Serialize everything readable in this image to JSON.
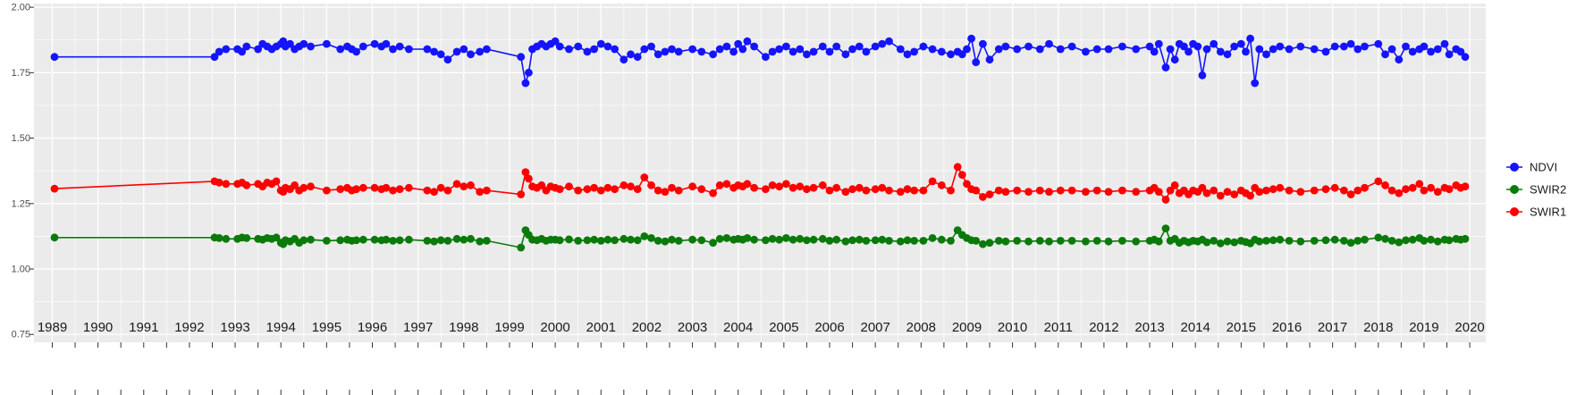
{
  "figure": {
    "background": "#FFFFFF",
    "panel_background": "#EBEBEB",
    "grid_color": "#FFFFFF",
    "axis_text_color": "#1a1a1a",
    "y_axis_text_color": "#4d4d4d",
    "tick_color": "#333333"
  },
  "axes": {
    "y_tick_labels": [
      "2.00",
      "1.75",
      "1.50",
      "1.25",
      "1.00",
      "0.75"
    ],
    "y_tick_values": [
      2.0,
      1.75,
      1.5,
      1.25,
      1.0,
      0.75
    ],
    "y_minor_values": [
      1.875,
      1.625,
      1.375,
      1.125,
      0.875
    ],
    "x_tick_labels": [
      "1989",
      "1990",
      "1991",
      "1992",
      "1993",
      "1994",
      "1995",
      "1996",
      "1997",
      "1998",
      "1999",
      "2000",
      "2001",
      "2002",
      "2003",
      "2004",
      "2005",
      "2006",
      "2007",
      "2008",
      "2009",
      "2010",
      "2011",
      "2012",
      "2013",
      "2014",
      "2015",
      "2016",
      "2017",
      "2018",
      "2019",
      "2020"
    ],
    "x_tick_values": [
      1989,
      1990,
      1991,
      1992,
      1993,
      1994,
      1995,
      1996,
      1997,
      1998,
      1999,
      2000,
      2001,
      2002,
      2003,
      2004,
      2005,
      2006,
      2007,
      2008,
      2009,
      2010,
      2011,
      2012,
      2013,
      2014,
      2015,
      2016,
      2017,
      2018,
      2019,
      2020
    ]
  },
  "legend": {
    "position": "right",
    "entries": [
      {
        "label": "NDVI",
        "color": "#1414FF"
      },
      {
        "label": "SWIR2",
        "color": "#0A7A0A"
      },
      {
        "label": "SWIR1",
        "color": "#FF0000"
      }
    ]
  },
  "chart_data": {
    "type": "line",
    "title": "",
    "xlabel": "",
    "ylabel": "",
    "grid": true,
    "legend_position": "right",
    "xlim": [
      1988.6,
      2020.35
    ],
    "ylim": [
      0.72,
      2.014
    ],
    "x": [
      1989.05,
      1992.55,
      1992.65,
      1992.8,
      1993.05,
      1993.15,
      1993.25,
      1993.5,
      1993.6,
      1993.7,
      1993.8,
      1993.9,
      1994.0,
      1994.05,
      1994.1,
      1994.2,
      1994.3,
      1994.4,
      1994.5,
      1994.65,
      1995.0,
      1995.3,
      1995.45,
      1995.55,
      1995.65,
      1995.8,
      1996.05,
      1996.2,
      1996.3,
      1996.45,
      1996.6,
      1996.8,
      1997.2,
      1997.35,
      1997.5,
      1997.65,
      1997.85,
      1998.0,
      1998.15,
      1998.35,
      1998.5,
      1999.25,
      1999.35,
      1999.42,
      1999.5,
      1999.6,
      1999.7,
      1999.8,
      1999.9,
      2000.0,
      2000.1,
      2000.3,
      2000.5,
      2000.7,
      2000.85,
      2001.0,
      2001.15,
      2001.3,
      2001.5,
      2001.65,
      2001.8,
      2001.95,
      2002.1,
      2002.25,
      2002.4,
      2002.55,
      2002.7,
      2003.0,
      2003.2,
      2003.45,
      2003.6,
      2003.75,
      2003.9,
      2004.0,
      2004.1,
      2004.2,
      2004.35,
      2004.6,
      2004.75,
      2004.9,
      2005.05,
      2005.2,
      2005.35,
      2005.5,
      2005.65,
      2005.85,
      2006.0,
      2006.15,
      2006.35,
      2006.5,
      2006.65,
      2006.8,
      2007.0,
      2007.15,
      2007.3,
      2007.55,
      2007.7,
      2007.85,
      2008.05,
      2008.25,
      2008.45,
      2008.65,
      2008.8,
      2008.9,
      2009.0,
      2009.1,
      2009.2,
      2009.35,
      2009.5,
      2009.7,
      2009.85,
      2010.1,
      2010.35,
      2010.6,
      2010.8,
      2011.05,
      2011.3,
      2011.6,
      2011.85,
      2012.1,
      2012.4,
      2012.7,
      2013.0,
      2013.1,
      2013.2,
      2013.35,
      2013.45,
      2013.55,
      2013.65,
      2013.75,
      2013.85,
      2013.95,
      2014.05,
      2014.15,
      2014.25,
      2014.4,
      2014.55,
      2014.7,
      2014.85,
      2015.0,
      2015.1,
      2015.2,
      2015.3,
      2015.4,
      2015.55,
      2015.7,
      2015.85,
      2016.05,
      2016.3,
      2016.6,
      2016.85,
      2017.05,
      2017.25,
      2017.4,
      2017.55,
      2017.7,
      2018.0,
      2018.15,
      2018.3,
      2018.45,
      2018.6,
      2018.75,
      2018.9,
      2019.0,
      2019.15,
      2019.3,
      2019.45,
      2019.55,
      2019.7,
      2019.8,
      2019.9
    ],
    "series": [
      {
        "name": "NDVI",
        "color": "#1414FF",
        "values": [
          1.81,
          1.81,
          1.83,
          1.84,
          1.84,
          1.83,
          1.85,
          1.84,
          1.86,
          1.85,
          1.84,
          1.85,
          1.86,
          1.87,
          1.85,
          1.86,
          1.84,
          1.85,
          1.86,
          1.85,
          1.86,
          1.84,
          1.85,
          1.84,
          1.83,
          1.85,
          1.86,
          1.85,
          1.86,
          1.84,
          1.85,
          1.84,
          1.84,
          1.83,
          1.82,
          1.8,
          1.83,
          1.84,
          1.82,
          1.83,
          1.84,
          1.81,
          1.71,
          1.75,
          1.84,
          1.85,
          1.86,
          1.85,
          1.86,
          1.87,
          1.85,
          1.84,
          1.85,
          1.83,
          1.84,
          1.86,
          1.85,
          1.84,
          1.8,
          1.82,
          1.81,
          1.84,
          1.85,
          1.82,
          1.83,
          1.84,
          1.83,
          1.84,
          1.83,
          1.82,
          1.84,
          1.85,
          1.83,
          1.86,
          1.84,
          1.87,
          1.85,
          1.81,
          1.83,
          1.84,
          1.85,
          1.83,
          1.84,
          1.82,
          1.83,
          1.85,
          1.83,
          1.85,
          1.82,
          1.84,
          1.85,
          1.83,
          1.85,
          1.86,
          1.87,
          1.84,
          1.82,
          1.83,
          1.85,
          1.84,
          1.83,
          1.82,
          1.83,
          1.82,
          1.84,
          1.88,
          1.79,
          1.86,
          1.8,
          1.84,
          1.85,
          1.84,
          1.85,
          1.84,
          1.86,
          1.84,
          1.85,
          1.83,
          1.84,
          1.84,
          1.85,
          1.84,
          1.85,
          1.83,
          1.86,
          1.77,
          1.84,
          1.8,
          1.86,
          1.85,
          1.83,
          1.86,
          1.85,
          1.74,
          1.84,
          1.86,
          1.83,
          1.82,
          1.85,
          1.86,
          1.83,
          1.88,
          1.71,
          1.84,
          1.82,
          1.84,
          1.85,
          1.84,
          1.85,
          1.84,
          1.83,
          1.85,
          1.85,
          1.86,
          1.84,
          1.85,
          1.86,
          1.82,
          1.84,
          1.8,
          1.85,
          1.83,
          1.84,
          1.85,
          1.83,
          1.84,
          1.86,
          1.82,
          1.84,
          1.83,
          1.81
        ]
      },
      {
        "name": "SWIR2",
        "color": "#0A7A0A",
        "values": [
          1.12,
          1.12,
          1.118,
          1.115,
          1.115,
          1.12,
          1.118,
          1.115,
          1.112,
          1.118,
          1.115,
          1.12,
          1.1,
          1.095,
          1.11,
          1.105,
          1.115,
          1.1,
          1.11,
          1.112,
          1.108,
          1.11,
          1.112,
          1.108,
          1.11,
          1.112,
          1.112,
          1.11,
          1.112,
          1.108,
          1.11,
          1.112,
          1.108,
          1.105,
          1.11,
          1.108,
          1.115,
          1.112,
          1.115,
          1.105,
          1.108,
          1.082,
          1.148,
          1.13,
          1.112,
          1.11,
          1.115,
          1.108,
          1.112,
          1.112,
          1.11,
          1.113,
          1.108,
          1.11,
          1.112,
          1.108,
          1.112,
          1.11,
          1.115,
          1.112,
          1.11,
          1.125,
          1.118,
          1.108,
          1.105,
          1.112,
          1.108,
          1.112,
          1.11,
          1.1,
          1.115,
          1.118,
          1.112,
          1.115,
          1.112,
          1.118,
          1.112,
          1.11,
          1.115,
          1.112,
          1.118,
          1.112,
          1.115,
          1.11,
          1.112,
          1.115,
          1.108,
          1.112,
          1.105,
          1.11,
          1.112,
          1.108,
          1.11,
          1.112,
          1.108,
          1.105,
          1.11,
          1.108,
          1.108,
          1.118,
          1.112,
          1.108,
          1.148,
          1.13,
          1.118,
          1.11,
          1.108,
          1.095,
          1.1,
          1.108,
          1.105,
          1.108,
          1.105,
          1.108,
          1.105,
          1.108,
          1.108,
          1.105,
          1.108,
          1.105,
          1.108,
          1.105,
          1.108,
          1.112,
          1.105,
          1.155,
          1.108,
          1.115,
          1.1,
          1.108,
          1.102,
          1.108,
          1.105,
          1.112,
          1.102,
          1.108,
          1.098,
          1.105,
          1.102,
          1.108,
          1.103,
          1.098,
          1.112,
          1.105,
          1.108,
          1.11,
          1.112,
          1.108,
          1.105,
          1.108,
          1.11,
          1.112,
          1.108,
          1.1,
          1.108,
          1.112,
          1.12,
          1.115,
          1.108,
          1.102,
          1.11,
          1.112,
          1.118,
          1.108,
          1.112,
          1.105,
          1.112,
          1.11,
          1.115,
          1.112,
          1.115
        ]
      },
      {
        "name": "SWIR1",
        "color": "#FF0000",
        "values": [
          1.307,
          1.335,
          1.33,
          1.325,
          1.325,
          1.33,
          1.32,
          1.325,
          1.315,
          1.33,
          1.325,
          1.335,
          1.3,
          1.295,
          1.31,
          1.305,
          1.32,
          1.3,
          1.31,
          1.315,
          1.3,
          1.305,
          1.31,
          1.3,
          1.305,
          1.31,
          1.31,
          1.305,
          1.31,
          1.3,
          1.305,
          1.31,
          1.3,
          1.295,
          1.31,
          1.3,
          1.325,
          1.315,
          1.32,
          1.295,
          1.3,
          1.285,
          1.37,
          1.345,
          1.315,
          1.31,
          1.32,
          1.3,
          1.315,
          1.31,
          1.305,
          1.315,
          1.3,
          1.305,
          1.31,
          1.3,
          1.31,
          1.305,
          1.32,
          1.315,
          1.305,
          1.35,
          1.32,
          1.3,
          1.295,
          1.31,
          1.3,
          1.315,
          1.305,
          1.29,
          1.32,
          1.325,
          1.31,
          1.32,
          1.315,
          1.325,
          1.31,
          1.305,
          1.32,
          1.315,
          1.325,
          1.31,
          1.315,
          1.305,
          1.31,
          1.32,
          1.3,
          1.31,
          1.295,
          1.305,
          1.31,
          1.3,
          1.305,
          1.31,
          1.3,
          1.295,
          1.305,
          1.3,
          1.3,
          1.335,
          1.32,
          1.3,
          1.39,
          1.36,
          1.325,
          1.305,
          1.3,
          1.275,
          1.285,
          1.3,
          1.295,
          1.3,
          1.295,
          1.3,
          1.295,
          1.3,
          1.3,
          1.295,
          1.3,
          1.295,
          1.3,
          1.295,
          1.3,
          1.31,
          1.295,
          1.265,
          1.3,
          1.32,
          1.29,
          1.3,
          1.285,
          1.3,
          1.295,
          1.31,
          1.29,
          1.3,
          1.28,
          1.295,
          1.285,
          1.3,
          1.29,
          1.28,
          1.31,
          1.295,
          1.3,
          1.305,
          1.31,
          1.3,
          1.295,
          1.3,
          1.305,
          1.31,
          1.3,
          1.285,
          1.3,
          1.31,
          1.335,
          1.32,
          1.3,
          1.29,
          1.305,
          1.31,
          1.325,
          1.3,
          1.31,
          1.295,
          1.31,
          1.305,
          1.32,
          1.31,
          1.315
        ]
      }
    ]
  }
}
